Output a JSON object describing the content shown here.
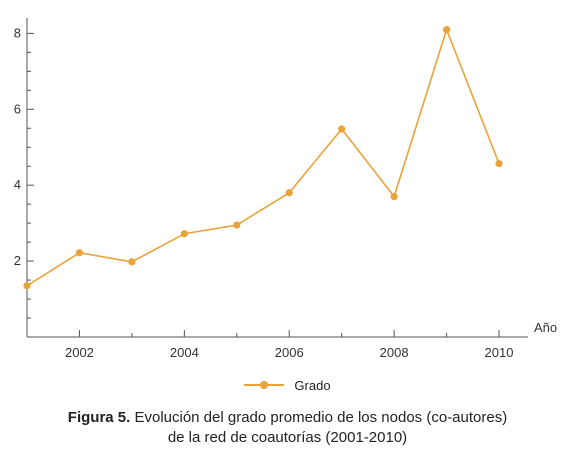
{
  "chart_data": {
    "type": "line",
    "x": [
      2001,
      2002,
      2003,
      2004,
      2005,
      2006,
      2007,
      2008,
      2009,
      2010
    ],
    "series": [
      {
        "name": "Grado",
        "values": [
          1.35,
          2.22,
          1.98,
          2.72,
          2.95,
          3.8,
          5.48,
          3.7,
          8.1,
          4.57
        ],
        "color": "#E9A339"
      }
    ],
    "xlabel": "Año",
    "ylabel": "",
    "xlim": [
      2001,
      2010.4
    ],
    "ylim": [
      0,
      8.3
    ],
    "xticks": [
      2002,
      2004,
      2006,
      2008,
      2010
    ],
    "yticks": [
      2,
      4,
      6,
      8
    ],
    "grid": false,
    "legend": "bottom-center"
  },
  "legend": {
    "label": "Grado"
  },
  "caption": {
    "label": "Figura 5.",
    "line1": " Evolución del grado promedio de los nodos (co-autores)",
    "line2": "de la red de coautorías (2001-2010)"
  }
}
